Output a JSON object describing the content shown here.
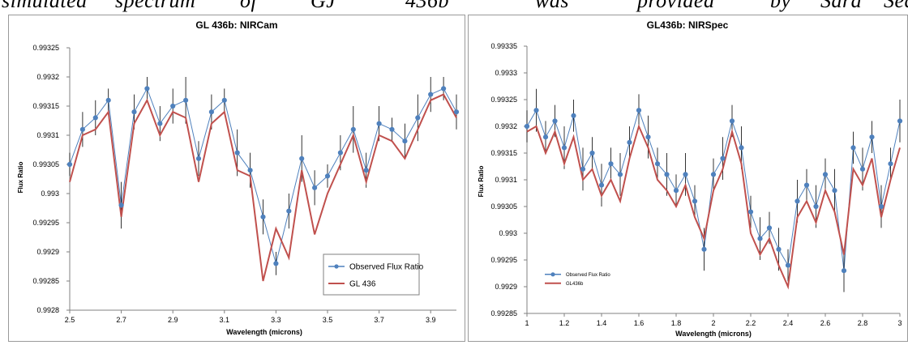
{
  "header_fragment": {
    "words": [
      "simulated",
      "spectrum",
      "of",
      "GJ",
      "436b",
      "was",
      "provided",
      "by",
      "Sara",
      "Seag"
    ]
  },
  "colors": {
    "observed": "#4f81bd",
    "model": "#c0504d",
    "errorbar": "#000000",
    "frame": "#9a9a9a"
  },
  "chart_data": [
    {
      "type": "line",
      "title": "GL 436b: NIRCam",
      "xlabel": "Wavelength (microns)",
      "ylabel": "Flux Ratio",
      "xlim": [
        2.5,
        4.0
      ],
      "ylim": [
        0.9928,
        0.99325
      ],
      "x_ticks": [
        "2.5",
        "2.7",
        "2.9",
        "3.1",
        "3.3",
        "3.5",
        "3.7",
        "3.9"
      ],
      "y_ticks": [
        "0.9928",
        "0.99285",
        "0.9929",
        "0.99295",
        "0.993",
        "0.99305",
        "0.9931",
        "0.99315",
        "0.9932",
        "0.99325"
      ],
      "legend_position": "bottom-right",
      "grid": false,
      "series": [
        {
          "name": "Observed Flux Ratio",
          "kind": "markers-with-errorbars",
          "x": [
            2.5,
            2.55,
            2.6,
            2.65,
            2.7,
            2.75,
            2.8,
            2.85,
            2.9,
            2.95,
            3.0,
            3.05,
            3.1,
            3.15,
            3.2,
            3.25,
            3.3,
            3.35,
            3.4,
            3.45,
            3.5,
            3.55,
            3.6,
            3.65,
            3.7,
            3.75,
            3.8,
            3.85,
            3.9,
            3.95,
            4.0
          ],
          "y": [
            0.99305,
            0.99311,
            0.99313,
            0.99316,
            0.99298,
            0.99314,
            0.99318,
            0.99312,
            0.99315,
            0.99316,
            0.99306,
            0.99314,
            0.99316,
            0.99307,
            0.99304,
            0.99296,
            0.99288,
            0.99297,
            0.99306,
            0.99301,
            0.99303,
            0.99307,
            0.99311,
            0.99304,
            0.99312,
            0.99311,
            0.99309,
            0.99313,
            0.99317,
            0.99318,
            0.99314
          ],
          "err": [
            2e-05,
            3e-05,
            3e-05,
            2e-05,
            4e-05,
            3e-05,
            2e-05,
            3e-05,
            3e-05,
            4e-05,
            3e-05,
            3e-05,
            2e-05,
            4e-05,
            3e-05,
            3e-05,
            2e-05,
            3e-05,
            4e-05,
            3e-05,
            2e-05,
            3e-05,
            4e-05,
            3e-05,
            3e-05,
            2e-05,
            3e-05,
            4e-05,
            3e-05,
            2e-05,
            3e-05
          ]
        },
        {
          "name": "GL 436",
          "kind": "line",
          "x": [
            2.5,
            2.55,
            2.6,
            2.65,
            2.7,
            2.75,
            2.8,
            2.85,
            2.9,
            2.95,
            3.0,
            3.05,
            3.1,
            3.15,
            3.2,
            3.25,
            3.3,
            3.35,
            3.4,
            3.45,
            3.5,
            3.55,
            3.6,
            3.65,
            3.7,
            3.75,
            3.8,
            3.85,
            3.9,
            3.95,
            4.0
          ],
          "y": [
            0.99302,
            0.9931,
            0.99311,
            0.99314,
            0.99296,
            0.99312,
            0.99316,
            0.9931,
            0.99314,
            0.99313,
            0.99302,
            0.99312,
            0.99314,
            0.99304,
            0.99303,
            0.99285,
            0.99294,
            0.99289,
            0.99304,
            0.99293,
            0.993,
            0.99305,
            0.9931,
            0.99302,
            0.9931,
            0.99309,
            0.99306,
            0.99311,
            0.99316,
            0.99317,
            0.99313
          ]
        }
      ]
    },
    {
      "type": "line",
      "title": "GL436b: NIRSpec",
      "xlabel": "Wavelength (microns)",
      "ylabel": "Flux Ratio",
      "xlim": [
        1.0,
        3.0
      ],
      "ylim": [
        0.99285,
        0.99335
      ],
      "x_ticks": [
        "1",
        "1.2",
        "1.4",
        "1.6",
        "1.8",
        "2",
        "2.2",
        "2.4",
        "2.6",
        "2.8",
        "3"
      ],
      "y_ticks": [
        "0.99285",
        "0.9929",
        "0.99295",
        "0.993",
        "0.99305",
        "0.9931",
        "0.99315",
        "0.9932",
        "0.99325",
        "0.9933",
        "0.99335"
      ],
      "legend_position": "bottom-left",
      "grid": false,
      "series": [
        {
          "name": "Observed Flux Ratio",
          "kind": "markers-with-errorbars",
          "x": [
            1.0,
            1.05,
            1.1,
            1.15,
            1.2,
            1.25,
            1.3,
            1.35,
            1.4,
            1.45,
            1.5,
            1.55,
            1.6,
            1.65,
            1.7,
            1.75,
            1.8,
            1.85,
            1.9,
            1.95,
            2.0,
            2.05,
            2.1,
            2.15,
            2.2,
            2.25,
            2.3,
            2.35,
            2.4,
            2.45,
            2.5,
            2.55,
            2.6,
            2.65,
            2.7,
            2.75,
            2.8,
            2.85,
            2.9,
            2.95,
            3.0
          ],
          "y": [
            0.9932,
            0.99323,
            0.99318,
            0.99321,
            0.99316,
            0.99322,
            0.99312,
            0.99315,
            0.99309,
            0.99313,
            0.99311,
            0.99317,
            0.99323,
            0.99318,
            0.99313,
            0.99311,
            0.99308,
            0.99311,
            0.99306,
            0.99297,
            0.99311,
            0.99314,
            0.99321,
            0.99316,
            0.99304,
            0.99299,
            0.99301,
            0.99297,
            0.99294,
            0.99306,
            0.99309,
            0.99305,
            0.99311,
            0.99308,
            0.99293,
            0.99316,
            0.99312,
            0.99318,
            0.99305,
            0.99313,
            0.99321
          ],
          "err": [
            3e-05,
            4e-05,
            3e-05,
            3e-05,
            4e-05,
            3e-05,
            4e-05,
            3e-05,
            4e-05,
            3e-05,
            4e-05,
            3e-05,
            3e-05,
            4e-05,
            3e-05,
            4e-05,
            3e-05,
            4e-05,
            3e-05,
            4e-05,
            3e-05,
            4e-05,
            3e-05,
            4e-05,
            3e-05,
            4e-05,
            3e-05,
            4e-05,
            3e-05,
            4e-05,
            3e-05,
            4e-05,
            3e-05,
            4e-05,
            4e-05,
            3e-05,
            4e-05,
            3e-05,
            4e-05,
            3e-05,
            4e-05
          ]
        },
        {
          "name": "GL436b",
          "kind": "line",
          "x": [
            1.0,
            1.05,
            1.1,
            1.15,
            1.2,
            1.25,
            1.3,
            1.35,
            1.4,
            1.45,
            1.5,
            1.55,
            1.6,
            1.65,
            1.7,
            1.75,
            1.8,
            1.85,
            1.9,
            1.95,
            2.0,
            2.05,
            2.1,
            2.15,
            2.2,
            2.25,
            2.3,
            2.35,
            2.4,
            2.45,
            2.5,
            2.55,
            2.6,
            2.65,
            2.7,
            2.75,
            2.8,
            2.85,
            2.9,
            2.95,
            3.0
          ],
          "y": [
            0.99319,
            0.9932,
            0.99315,
            0.99319,
            0.99313,
            0.99318,
            0.9931,
            0.99312,
            0.99307,
            0.9931,
            0.99306,
            0.99314,
            0.9932,
            0.99316,
            0.9931,
            0.99308,
            0.99305,
            0.99309,
            0.99303,
            0.99299,
            0.99308,
            0.99312,
            0.99319,
            0.99313,
            0.993,
            0.99296,
            0.99299,
            0.99294,
            0.9929,
            0.99303,
            0.99306,
            0.99302,
            0.99308,
            0.99304,
            0.99296,
            0.99312,
            0.99309,
            0.99314,
            0.99303,
            0.9931,
            0.99316
          ]
        }
      ]
    }
  ]
}
